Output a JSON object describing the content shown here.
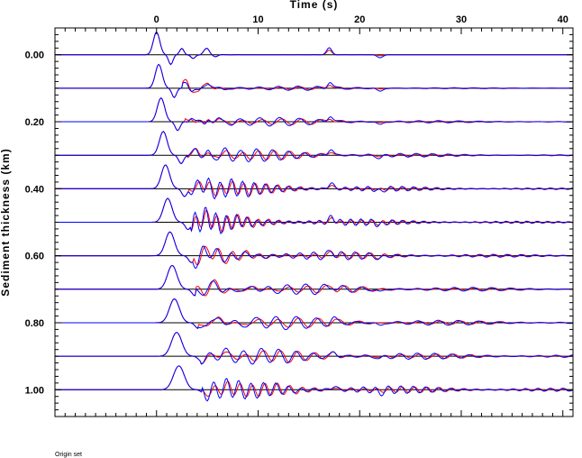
{
  "chart_data": {
    "type": "line",
    "title": "",
    "xlabel": "Time (s)",
    "ylabel": "Sediment thickness (km)",
    "footnote": "Origin set",
    "xlim": [
      -10,
      41
    ],
    "ylim": [
      -0.08,
      1.08
    ],
    "x_ticks": [
      0,
      10,
      20,
      30,
      40
    ],
    "y_ticks": [
      0.0,
      0.2,
      0.4,
      0.6,
      0.8,
      1.0
    ],
    "y_tick_labels": [
      "0.00",
      "0.20",
      "0.40",
      "0.60",
      "0.80",
      "1.00"
    ],
    "trace_offsets": [
      0.0,
      0.1,
      0.2,
      0.3,
      0.4,
      0.5,
      0.6,
      0.7,
      0.8,
      0.9,
      1.0
    ],
    "series": [
      {
        "color": "#ff0000"
      },
      {
        "color": "#0000ff"
      }
    ]
  }
}
